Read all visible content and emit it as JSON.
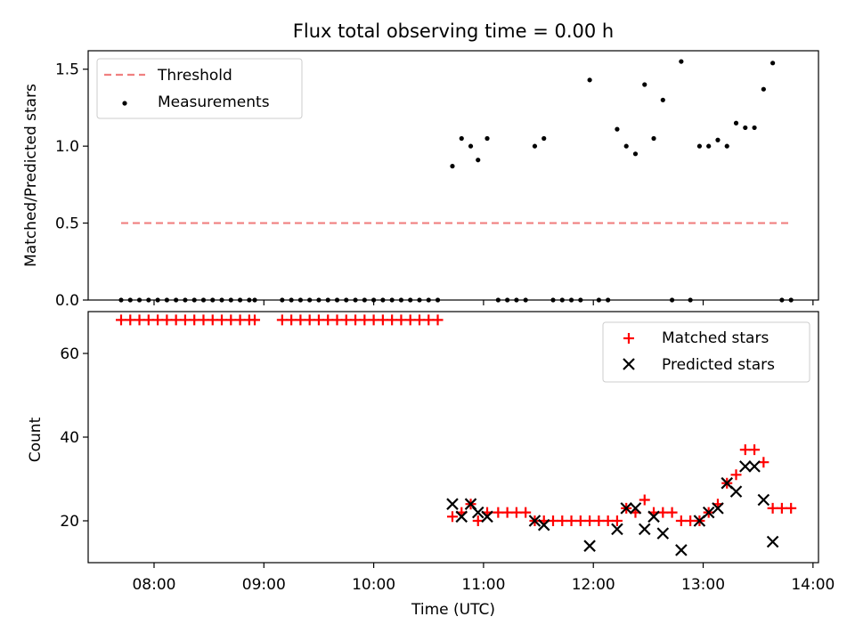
{
  "title": "Flux total observing time = 0.00 h",
  "chart_data": [
    {
      "type": "scatter",
      "ylabel": "Matched/Predicted stars",
      "xlabel": "",
      "ylim": [
        0,
        1.62
      ],
      "yticks": [
        0.0,
        0.5,
        1.0,
        1.5
      ],
      "ytick_labels": [
        "0.0",
        "0.5",
        "1.0",
        "1.5"
      ],
      "legend_position": "upper-left",
      "threshold": {
        "name": "Threshold",
        "value": 0.5,
        "x_range": [
          "07:42",
          "13:48"
        ],
        "color": "#f08080"
      },
      "series": [
        {
          "name": "Measurements",
          "color": "#000000",
          "marker": "dot",
          "points": [
            [
              "07:42",
              0
            ],
            [
              "07:47",
              0
            ],
            [
              "07:52",
              0
            ],
            [
              "07:57",
              0
            ],
            [
              "08:02",
              0
            ],
            [
              "08:07",
              0
            ],
            [
              "08:12",
              0
            ],
            [
              "08:17",
              0
            ],
            [
              "08:22",
              0
            ],
            [
              "08:27",
              0
            ],
            [
              "08:32",
              0
            ],
            [
              "08:37",
              0
            ],
            [
              "08:42",
              0
            ],
            [
              "08:47",
              0
            ],
            [
              "08:52",
              0
            ],
            [
              "08:55",
              0
            ],
            [
              "09:10",
              0
            ],
            [
              "09:15",
              0
            ],
            [
              "09:20",
              0
            ],
            [
              "09:25",
              0
            ],
            [
              "09:30",
              0
            ],
            [
              "09:35",
              0
            ],
            [
              "09:40",
              0
            ],
            [
              "09:45",
              0
            ],
            [
              "09:50",
              0
            ],
            [
              "09:55",
              0
            ],
            [
              "10:00",
              0
            ],
            [
              "10:05",
              0
            ],
            [
              "10:10",
              0
            ],
            [
              "10:15",
              0
            ],
            [
              "10:20",
              0
            ],
            [
              "10:25",
              0
            ],
            [
              "10:30",
              0
            ],
            [
              "10:35",
              0
            ],
            [
              "10:43",
              0.87
            ],
            [
              "10:48",
              1.05
            ],
            [
              "10:53",
              1.0
            ],
            [
              "10:57",
              0.91
            ],
            [
              "11:02",
              1.05
            ],
            [
              "11:08",
              0
            ],
            [
              "11:13",
              0
            ],
            [
              "11:18",
              0
            ],
            [
              "11:23",
              0
            ],
            [
              "11:28",
              1.0
            ],
            [
              "11:33",
              1.05
            ],
            [
              "11:38",
              0
            ],
            [
              "11:43",
              0
            ],
            [
              "11:48",
              0
            ],
            [
              "11:53",
              0
            ],
            [
              "11:58",
              1.43
            ],
            [
              "12:03",
              0
            ],
            [
              "12:08",
              0
            ],
            [
              "12:13",
              1.11
            ],
            [
              "12:18",
              1.0
            ],
            [
              "12:23",
              0.95
            ],
            [
              "12:28",
              1.4
            ],
            [
              "12:33",
              1.05
            ],
            [
              "12:38",
              1.3
            ],
            [
              "12:43",
              0
            ],
            [
              "12:48",
              1.55
            ],
            [
              "12:53",
              0
            ],
            [
              "12:58",
              1.0
            ],
            [
              "13:03",
              1.0
            ],
            [
              "13:08",
              1.04
            ],
            [
              "13:13",
              1.0
            ],
            [
              "13:18",
              1.15
            ],
            [
              "13:23",
              1.12
            ],
            [
              "13:28",
              1.12
            ],
            [
              "13:33",
              1.37
            ],
            [
              "13:38",
              1.54
            ],
            [
              "13:43",
              0
            ],
            [
              "13:48",
              0
            ]
          ]
        }
      ]
    },
    {
      "type": "scatter",
      "ylabel": "Count",
      "xlabel": "Time (UTC)",
      "ylim": [
        10,
        70
      ],
      "xlim": [
        "07:24",
        "14:03"
      ],
      "xticks": [
        "08:00",
        "09:00",
        "10:00",
        "11:00",
        "12:00",
        "13:00",
        "14:00"
      ],
      "yticks": [
        20,
        40,
        60
      ],
      "legend_position": "upper-right",
      "series": [
        {
          "name": "Matched stars",
          "color": "#ff0000",
          "marker": "plus",
          "points": [
            [
              "07:42",
              68
            ],
            [
              "07:47",
              68
            ],
            [
              "07:52",
              68
            ],
            [
              "07:57",
              68
            ],
            [
              "08:02",
              68
            ],
            [
              "08:07",
              68
            ],
            [
              "08:12",
              68
            ],
            [
              "08:17",
              68
            ],
            [
              "08:22",
              68
            ],
            [
              "08:27",
              68
            ],
            [
              "08:32",
              68
            ],
            [
              "08:37",
              68
            ],
            [
              "08:42",
              68
            ],
            [
              "08:47",
              68
            ],
            [
              "08:52",
              68
            ],
            [
              "08:55",
              68
            ],
            [
              "09:10",
              68
            ],
            [
              "09:15",
              68
            ],
            [
              "09:20",
              68
            ],
            [
              "09:25",
              68
            ],
            [
              "09:30",
              68
            ],
            [
              "09:35",
              68
            ],
            [
              "09:40",
              68
            ],
            [
              "09:45",
              68
            ],
            [
              "09:50",
              68
            ],
            [
              "09:55",
              68
            ],
            [
              "10:00",
              68
            ],
            [
              "10:05",
              68
            ],
            [
              "10:10",
              68
            ],
            [
              "10:15",
              68
            ],
            [
              "10:20",
              68
            ],
            [
              "10:25",
              68
            ],
            [
              "10:30",
              68
            ],
            [
              "10:35",
              68
            ],
            [
              "10:43",
              21
            ],
            [
              "10:48",
              22
            ],
            [
              "10:53",
              24
            ],
            [
              "10:57",
              20
            ],
            [
              "11:02",
              22
            ],
            [
              "11:08",
              22
            ],
            [
              "11:13",
              22
            ],
            [
              "11:18",
              22
            ],
            [
              "11:23",
              22
            ],
            [
              "11:28",
              20
            ],
            [
              "11:33",
              20
            ],
            [
              "11:38",
              20
            ],
            [
              "11:43",
              20
            ],
            [
              "11:48",
              20
            ],
            [
              "11:53",
              20
            ],
            [
              "11:58",
              20
            ],
            [
              "12:03",
              20
            ],
            [
              "12:08",
              20
            ],
            [
              "12:13",
              20
            ],
            [
              "12:18",
              23
            ],
            [
              "12:23",
              22
            ],
            [
              "12:28",
              25
            ],
            [
              "12:33",
              22
            ],
            [
              "12:38",
              22
            ],
            [
              "12:43",
              22
            ],
            [
              "12:48",
              20
            ],
            [
              "12:53",
              20
            ],
            [
              "12:58",
              20
            ],
            [
              "13:03",
              22
            ],
            [
              "13:08",
              24
            ],
            [
              "13:13",
              29
            ],
            [
              "13:18",
              31
            ],
            [
              "13:23",
              37
            ],
            [
              "13:28",
              37
            ],
            [
              "13:33",
              34
            ],
            [
              "13:38",
              23
            ],
            [
              "13:43",
              23
            ],
            [
              "13:48",
              23
            ]
          ]
        },
        {
          "name": "Predicted stars",
          "color": "#000000",
          "marker": "x",
          "points": [
            [
              "10:43",
              24
            ],
            [
              "10:48",
              21
            ],
            [
              "10:53",
              24
            ],
            [
              "10:57",
              22
            ],
            [
              "11:02",
              21
            ],
            [
              "11:28",
              20
            ],
            [
              "11:33",
              19
            ],
            [
              "11:58",
              14
            ],
            [
              "12:13",
              18
            ],
            [
              "12:18",
              23
            ],
            [
              "12:23",
              23
            ],
            [
              "12:28",
              18
            ],
            [
              "12:33",
              21
            ],
            [
              "12:38",
              17
            ],
            [
              "12:48",
              13
            ],
            [
              "12:58",
              20
            ],
            [
              "13:03",
              22
            ],
            [
              "13:08",
              23
            ],
            [
              "13:13",
              29
            ],
            [
              "13:18",
              27
            ],
            [
              "13:23",
              33
            ],
            [
              "13:28",
              33
            ],
            [
              "13:33",
              25
            ],
            [
              "13:38",
              15
            ]
          ]
        }
      ]
    }
  ]
}
